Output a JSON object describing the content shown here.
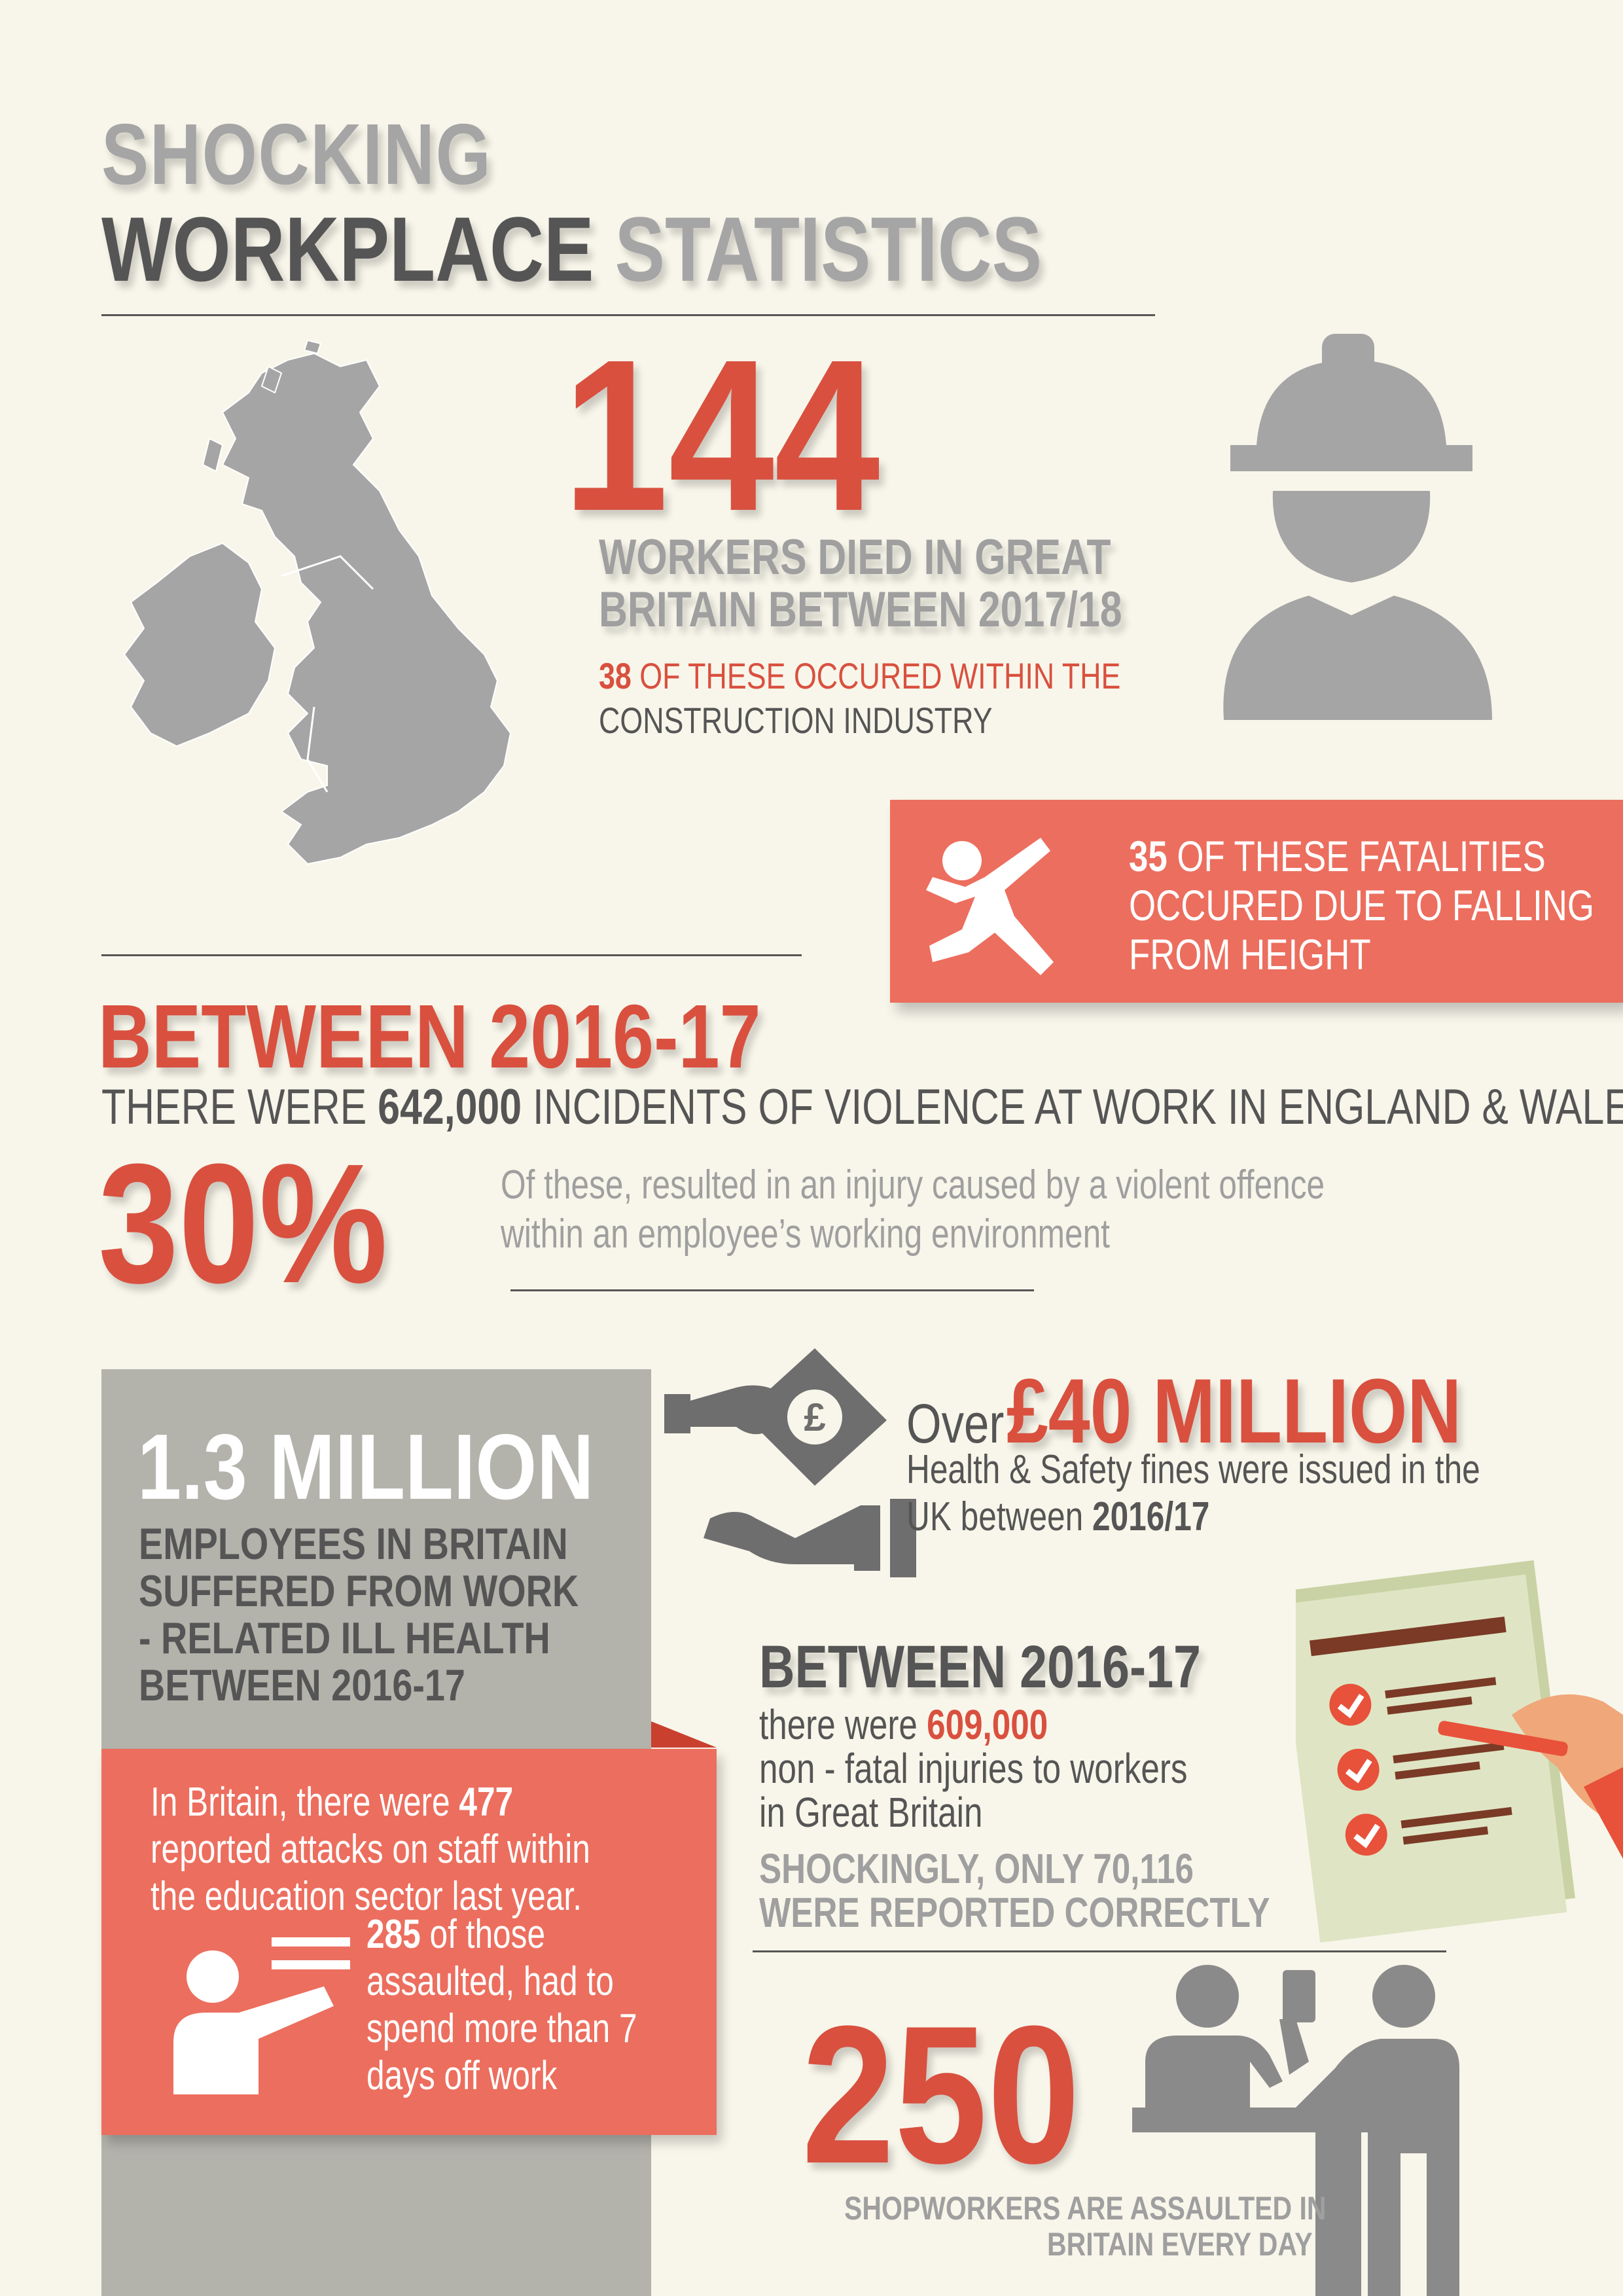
{
  "title": {
    "line1": "SHOCKING",
    "line2_dark": "WORKPLACE",
    "line2_light": "STATISTICS"
  },
  "deaths": {
    "number": "144",
    "line1": "WORKERS DIED IN GREAT",
    "line2": "BRITAIN BETWEEN 2017/18",
    "construction_count": "38",
    "construction_text1": "OF THESE OCCURED WITHIN THE",
    "construction_text2": "CONSTRUCTION INDUSTRY"
  },
  "falls": {
    "count": "35",
    "line1_rest": "OF THESE FATALITIES",
    "line2": "OCCURED DUE TO FALLING",
    "line3": "FROM HEIGHT"
  },
  "violence": {
    "heading": "BETWEEN 2016-17",
    "prefix": "THERE WERE",
    "count": "642,000",
    "suffix": "INCIDENTS OF VIOLENCE AT WORK IN ENGLAND & WALES",
    "percent": "30%",
    "desc1": "Of these, resulted in an injury caused by a violent offence",
    "desc2": "within an employee’s working environment"
  },
  "ill_health": {
    "number": "1.3 MILLION",
    "line1": "EMPLOYEES IN BRITAIN",
    "line2": "SUFFERED FROM WORK",
    "line3": "- RELATED ILL HEALTH",
    "line4": "BETWEEN 2016-17"
  },
  "fines": {
    "over": "Over",
    "amount": "£40 MILLION",
    "line1": "Health & Safety fines were issued in the",
    "line2_prefix": "UK between",
    "line2_year": "2016/17"
  },
  "injuries": {
    "heading": "BETWEEN 2016-17",
    "prefix": "there were",
    "count": "609,000",
    "line2": "non - fatal injuries to workers",
    "line3": "in Great Britain",
    "reported1": "SHOCKINGLY, ONLY 70,116",
    "reported2": "WERE REPORTED CORRECTLY"
  },
  "education": {
    "line1_prefix": "In Britain, there were",
    "line1_count": "477",
    "line2": "reported attacks on staff within",
    "line3": "the education sector last year.",
    "sub_count": "285",
    "sub1_rest": "of those",
    "sub2": "assaulted, had to",
    "sub3": "spend more than 7",
    "sub4": "days off  work"
  },
  "shopworkers": {
    "number": "250",
    "line1": "SHOPWORKERS ARE ASSAULTED IN",
    "line2": "BRITAIN EVERY DAY"
  },
  "colors": {
    "accent": "#d9503f",
    "coral": "#ec6e5e",
    "grey": "#9f9f9f",
    "dark": "#555555",
    "background": "#f8f6ea"
  },
  "icons": [
    "uk-map-icon",
    "construction-worker-icon",
    "falling-person-icon",
    "money-handover-icon",
    "checklist-icon",
    "teacher-icon",
    "shop-counter-icon"
  ]
}
